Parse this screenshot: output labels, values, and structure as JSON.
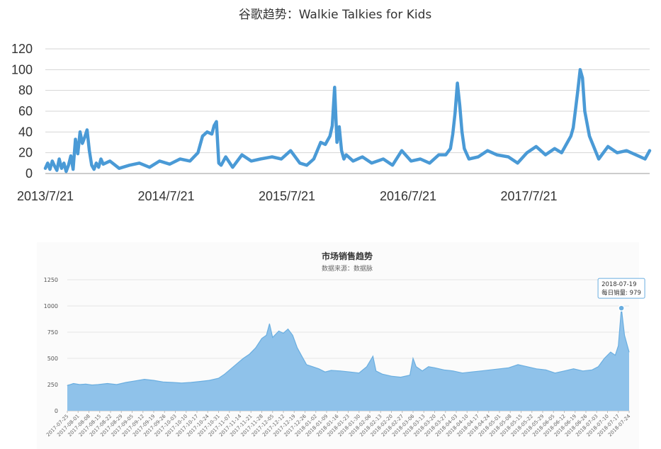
{
  "chart_data": [
    {
      "type": "line",
      "title": "谷歌趋势：Walkie Talkies for Kids",
      "xlabel": "",
      "ylabel": "",
      "ylim": [
        0,
        120
      ],
      "yticks": [
        "0",
        "20",
        "40",
        "60",
        "80",
        "100",
        "120"
      ],
      "xticks": [
        "2013/7/21",
        "2014/7/21",
        "2015/7/21",
        "2016/7/21",
        "2017/7/21"
      ],
      "xrange": [
        "2013-07-21",
        "2018-07-21"
      ],
      "grid": true,
      "line_color": "#4a9ad6",
      "series": [
        {
          "x": [
            "2013-07-21",
            "2013-07-28",
            "2013-08-04",
            "2013-08-11",
            "2013-08-18",
            "2013-08-25",
            "2013-09-01",
            "2013-09-08",
            "2013-09-15",
            "2013-09-22",
            "2013-09-29",
            "2013-10-06",
            "2013-10-13",
            "2013-10-20",
            "2013-10-27",
            "2013-11-03",
            "2013-11-10",
            "2013-11-17",
            "2013-11-24",
            "2013-12-01",
            "2013-12-08",
            "2013-12-15",
            "2013-12-22",
            "2013-12-29",
            "2014-01-05",
            "2014-01-12",
            "2014-02-01",
            "2014-03-01",
            "2014-04-01",
            "2014-05-01",
            "2014-06-01",
            "2014-07-01",
            "2014-08-01",
            "2014-09-01",
            "2014-10-01",
            "2014-10-25",
            "2014-11-08",
            "2014-11-22",
            "2014-12-06",
            "2014-12-13",
            "2014-12-20",
            "2014-12-27",
            "2015-01-03",
            "2015-01-17",
            "2015-02-07",
            "2015-03-07",
            "2015-04-04",
            "2015-05-02",
            "2015-06-06",
            "2015-07-04",
            "2015-08-01",
            "2015-08-29",
            "2015-09-19",
            "2015-10-10",
            "2015-10-31",
            "2015-11-14",
            "2015-11-28",
            "2015-12-05",
            "2015-12-12",
            "2015-12-19",
            "2015-12-26",
            "2016-01-02",
            "2016-01-09",
            "2016-01-16",
            "2016-02-06",
            "2016-03-05",
            "2016-04-02",
            "2016-05-07",
            "2016-06-04",
            "2016-07-02",
            "2016-07-30",
            "2016-08-27",
            "2016-09-24",
            "2016-10-22",
            "2016-11-12",
            "2016-11-26",
            "2016-12-03",
            "2016-12-10",
            "2016-12-17",
            "2016-12-24",
            "2016-12-31",
            "2017-01-07",
            "2017-01-21",
            "2017-02-18",
            "2017-03-18",
            "2017-04-15",
            "2017-05-20",
            "2017-06-17",
            "2017-07-15",
            "2017-08-12",
            "2017-09-09",
            "2017-10-07",
            "2017-10-28",
            "2017-11-11",
            "2017-11-25",
            "2017-12-02",
            "2017-12-09",
            "2017-12-16",
            "2017-12-23",
            "2017-12-30",
            "2018-01-06",
            "2018-01-20",
            "2018-02-17",
            "2018-03-17",
            "2018-04-14",
            "2018-05-12",
            "2018-06-09",
            "2018-07-07",
            "2018-07-21"
          ],
          "values": [
            5,
            10,
            4,
            12,
            7,
            3,
            14,
            5,
            10,
            2,
            8,
            17,
            4,
            33,
            19,
            40,
            29,
            35,
            42,
            22,
            8,
            4,
            10,
            6,
            14,
            9,
            12,
            5,
            8,
            10,
            6,
            12,
            9,
            14,
            12,
            20,
            36,
            40,
            38,
            46,
            50,
            10,
            8,
            16,
            6,
            18,
            12,
            14,
            16,
            14,
            22,
            10,
            8,
            14,
            30,
            28,
            36,
            46,
            83,
            30,
            45,
            22,
            14,
            18,
            12,
            16,
            10,
            14,
            8,
            22,
            12,
            14,
            10,
            18,
            18,
            24,
            38,
            58,
            87,
            66,
            40,
            24,
            14,
            16,
            22,
            18,
            16,
            10,
            20,
            26,
            18,
            24,
            20,
            28,
            36,
            44,
            62,
            80,
            100,
            92,
            60,
            36,
            14,
            26,
            20,
            22,
            18,
            14,
            22
          ]
        }
      ]
    },
    {
      "type": "area",
      "title": "市场销售趋势",
      "subtitle": "数据来源：数据脉",
      "xlabel": "",
      "ylabel": "",
      "ylim": [
        0,
        1250
      ],
      "yticks": [
        "0",
        "250",
        "500",
        "750",
        "1000",
        "1250"
      ],
      "xrange": [
        "2017-07-25",
        "2018-07-24"
      ],
      "xticks": [
        "2017-07-25",
        "2017-08-01",
        "2017-08-08",
        "2017-08-15",
        "2017-08-22",
        "2017-08-29",
        "2017-09-05",
        "2017-09-12",
        "2017-09-19",
        "2017-09-26",
        "2017-10-03",
        "2017-10-10",
        "2017-10-17",
        "2017-10-24",
        "2017-10-31",
        "2017-11-07",
        "2017-11-14",
        "2017-11-21",
        "2017-11-28",
        "2017-12-05",
        "2017-12-12",
        "2017-12-19",
        "2017-12-26",
        "2018-01-02",
        "2018-01-09",
        "2018-01-16",
        "2018-01-23",
        "2018-01-30",
        "2018-02-06",
        "2018-02-13",
        "2018-02-20",
        "2018-02-27",
        "2018-03-06",
        "2018-03-13",
        "2018-03-20",
        "2018-03-27",
        "2018-04-03",
        "2018-04-10",
        "2018-04-17",
        "2018-04-24",
        "2018-05-01",
        "2018-05-08",
        "2018-05-15",
        "2018-05-22",
        "2018-05-29",
        "2018-06-05",
        "2018-06-12",
        "2018-06-19",
        "2018-06-26",
        "2018-07-03",
        "2018-07-10",
        "2018-07-17",
        "2018-07-24"
      ],
      "grid": true,
      "fill_color": "#8fc2ea",
      "line_color": "#6aaee0",
      "series": [
        {
          "name": "每日销量",
          "x": [
            "2017-07-25",
            "2017-07-29",
            "2017-08-02",
            "2017-08-06",
            "2017-08-10",
            "2017-08-14",
            "2017-08-20",
            "2017-08-26",
            "2017-09-01",
            "2017-09-07",
            "2017-09-13",
            "2017-09-19",
            "2017-09-25",
            "2017-10-01",
            "2017-10-07",
            "2017-10-13",
            "2017-10-19",
            "2017-10-25",
            "2017-10-31",
            "2017-11-04",
            "2017-11-08",
            "2017-11-12",
            "2017-11-16",
            "2017-11-20",
            "2017-11-24",
            "2017-11-28",
            "2017-12-01",
            "2017-12-03",
            "2017-12-05",
            "2017-12-07",
            "2017-12-09",
            "2017-12-12",
            "2017-12-15",
            "2017-12-18",
            "2017-12-21",
            "2017-12-24",
            "2017-12-27",
            "2017-12-31",
            "2018-01-04",
            "2018-01-08",
            "2018-01-12",
            "2018-01-18",
            "2018-01-24",
            "2018-01-30",
            "2018-02-04",
            "2018-02-08",
            "2018-02-10",
            "2018-02-14",
            "2018-02-20",
            "2018-02-26",
            "2018-03-04",
            "2018-03-06",
            "2018-03-08",
            "2018-03-12",
            "2018-03-16",
            "2018-03-20",
            "2018-03-26",
            "2018-04-01",
            "2018-04-07",
            "2018-04-13",
            "2018-04-19",
            "2018-04-25",
            "2018-05-01",
            "2018-05-07",
            "2018-05-13",
            "2018-05-19",
            "2018-05-25",
            "2018-05-31",
            "2018-06-06",
            "2018-06-12",
            "2018-06-18",
            "2018-06-24",
            "2018-06-30",
            "2018-07-04",
            "2018-07-08",
            "2018-07-12",
            "2018-07-15",
            "2018-07-17",
            "2018-07-19",
            "2018-07-21",
            "2018-07-24"
          ],
          "values": [
            240,
            260,
            250,
            255,
            245,
            250,
            260,
            250,
            270,
            285,
            300,
            290,
            275,
            270,
            265,
            270,
            280,
            290,
            310,
            350,
            400,
            450,
            500,
            540,
            600,
            690,
            720,
            830,
            700,
            730,
            760,
            740,
            780,
            720,
            600,
            520,
            440,
            420,
            400,
            370,
            385,
            380,
            370,
            360,
            420,
            520,
            380,
            350,
            330,
            320,
            340,
            500,
            420,
            380,
            420,
            410,
            390,
            380,
            360,
            370,
            380,
            390,
            400,
            410,
            440,
            420,
            400,
            390,
            360,
            380,
            400,
            380,
            390,
            420,
            500,
            560,
            530,
            620,
            979,
            720,
            560
          ]
        }
      ],
      "tooltip": {
        "date": "2018-07-19",
        "label": "每日销量: 979"
      }
    }
  ]
}
